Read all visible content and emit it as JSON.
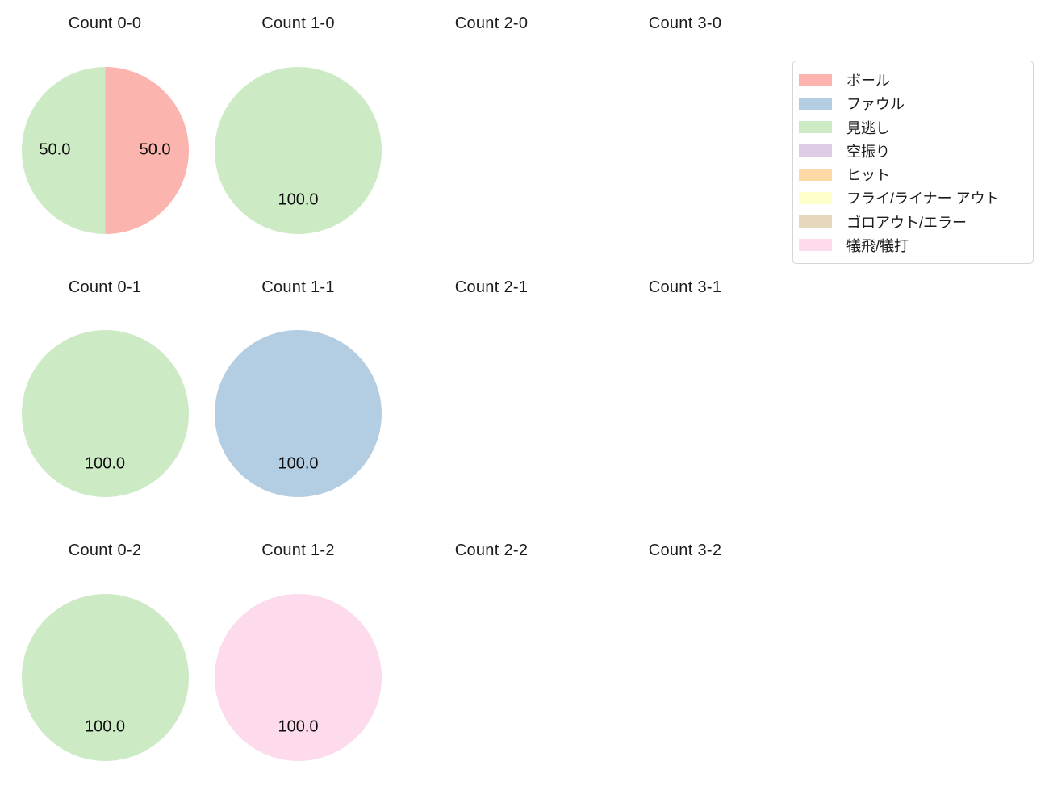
{
  "figure": {
    "background": "#ffffff"
  },
  "legend": {
    "position": "upper-right",
    "items": [
      {
        "label": "ボール",
        "color": "#fbb4ae"
      },
      {
        "label": "ファウル",
        "color": "#b3cde3"
      },
      {
        "label": "見逃し",
        "color": "#ccebc5"
      },
      {
        "label": "空振り",
        "color": "#decbe4"
      },
      {
        "label": "ヒット",
        "color": "#fed9a6"
      },
      {
        "label": "フライ/ライナー アウト",
        "color": "#ffffcc"
      },
      {
        "label": "ゴロアウト/エラー",
        "color": "#e5d8bd"
      },
      {
        "label": "犠飛/犠打",
        "color": "#fddaec"
      }
    ]
  },
  "chart_data": {
    "type": "pie",
    "layout": {
      "rows": 3,
      "cols": 4,
      "grid": false
    },
    "legend_position": "upper right",
    "start_angle_deg_clockwise_from_top": 0,
    "pct_label_distance": 0.6,
    "charts": [
      {
        "title": "Count 0-0",
        "slices": [
          {
            "category": "ボール",
            "value": 50,
            "pct_label": "50.0",
            "color": "#fbb4ae"
          },
          {
            "category": "見逃し",
            "value": 50,
            "pct_label": "50.0",
            "color": "#ccebc5"
          }
        ]
      },
      {
        "title": "Count 1-0",
        "slices": [
          {
            "category": "見逃し",
            "value": 100,
            "pct_label": "100.0",
            "color": "#ccebc5"
          }
        ]
      },
      {
        "title": "Count 2-0",
        "slices": []
      },
      {
        "title": "Count 3-0",
        "slices": []
      },
      {
        "title": "Count 0-1",
        "slices": [
          {
            "category": "見逃し",
            "value": 100,
            "pct_label": "100.0",
            "color": "#ccebc5"
          }
        ]
      },
      {
        "title": "Count 1-1",
        "slices": [
          {
            "category": "ファウル",
            "value": 100,
            "pct_label": "100.0",
            "color": "#b3cde3"
          }
        ]
      },
      {
        "title": "Count 2-1",
        "slices": []
      },
      {
        "title": "Count 3-1",
        "slices": []
      },
      {
        "title": "Count 0-2",
        "slices": [
          {
            "category": "見逃し",
            "value": 100,
            "pct_label": "100.0",
            "color": "#ccebc5"
          }
        ]
      },
      {
        "title": "Count 1-2",
        "slices": [
          {
            "category": "犠飛/犠打",
            "value": 100,
            "pct_label": "100.0",
            "color": "#fddaec"
          }
        ]
      },
      {
        "title": "Count 2-2",
        "slices": []
      },
      {
        "title": "Count 3-2",
        "slices": []
      }
    ]
  }
}
